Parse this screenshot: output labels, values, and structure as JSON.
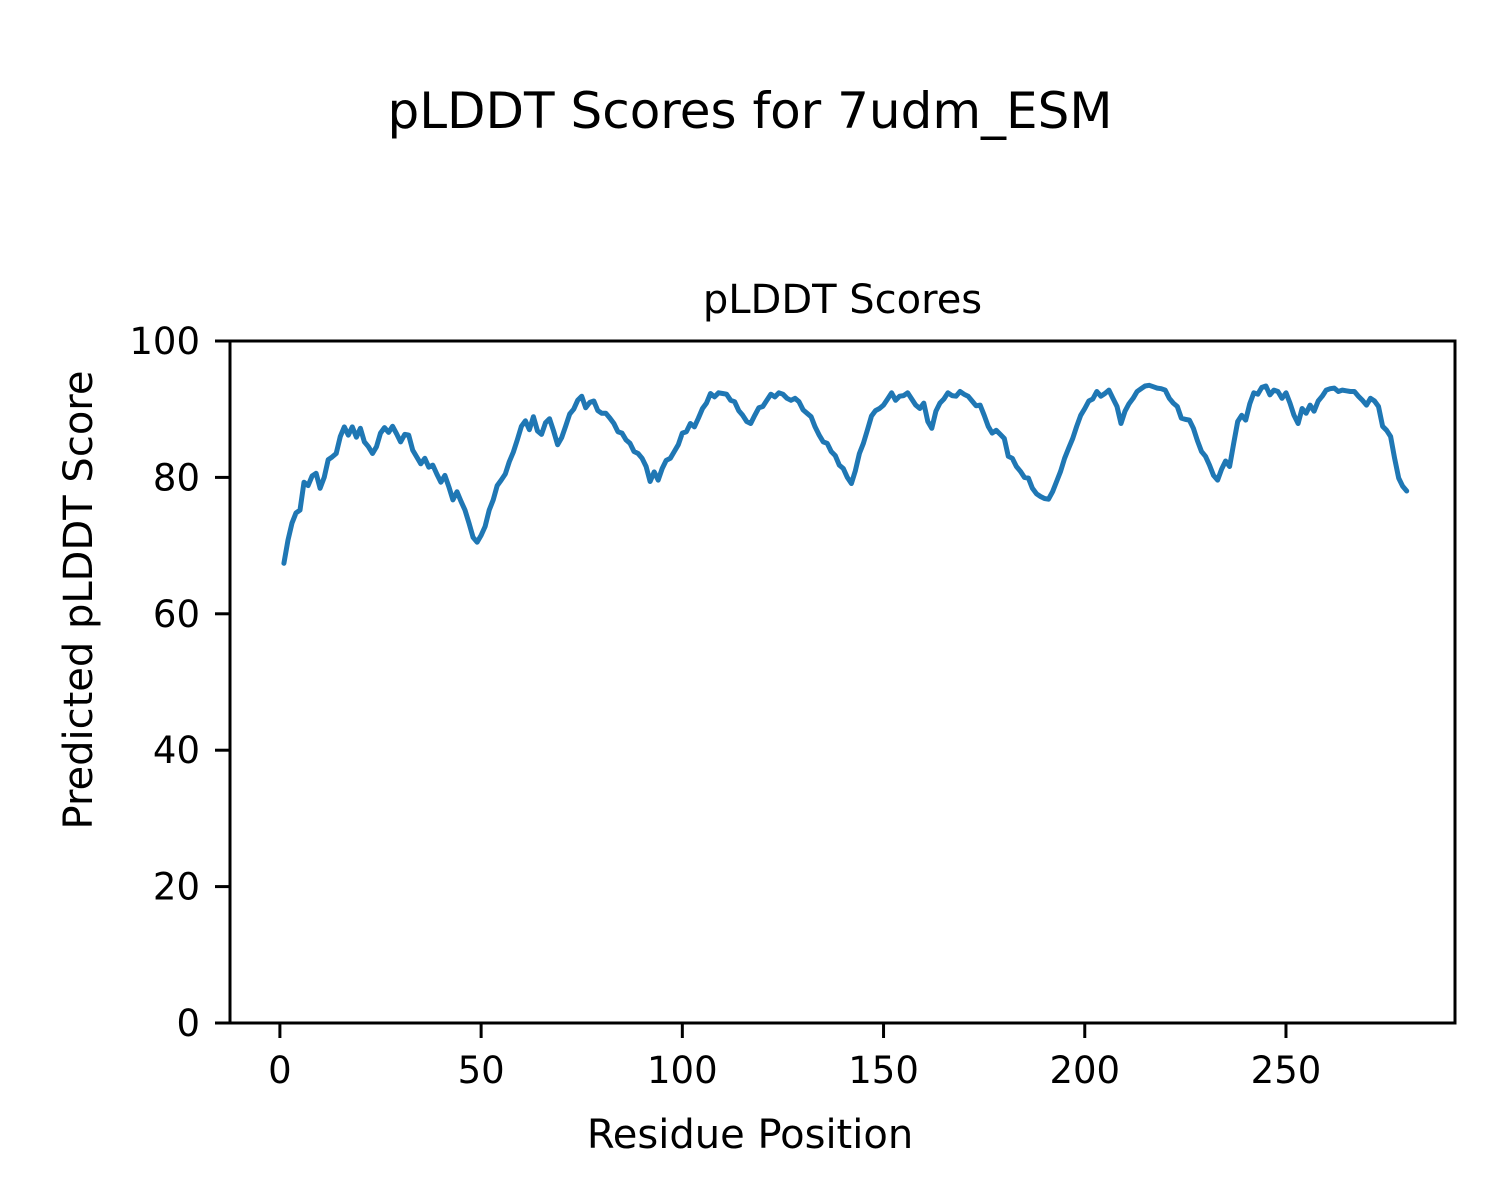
{
  "figure": {
    "title": "pLDDT Scores for 7udm_ESM"
  },
  "chart_data": {
    "type": "line",
    "title": "pLDDT Scores",
    "xlabel": "Residue Position",
    "ylabel": "Predicted pLDDT Score",
    "x_start": 1,
    "x_step": 1,
    "xlim": [
      -12.4,
      292
    ],
    "ylim": [
      0,
      100
    ],
    "x_ticks": [
      0,
      50,
      100,
      150,
      200,
      250
    ],
    "y_ticks": [
      0,
      20,
      40,
      60,
      80,
      100
    ],
    "grid": false,
    "legend_position": "none",
    "line_color": "#1f77b4",
    "axis_color": "#000000",
    "values": [
      67.4,
      70.8,
      73.3,
      74.8,
      75.2,
      79.3,
      78.8,
      80.2,
      80.6,
      78.4,
      80.0,
      82.6,
      83.0,
      83.5,
      86.0,
      87.4,
      86.2,
      87.4,
      85.9,
      87.2,
      85.2,
      84.5,
      83.5,
      84.5,
      86.5,
      87.3,
      86.6,
      87.5,
      86.4,
      85.2,
      86.3,
      86.2,
      84.0,
      83.0,
      82.0,
      82.8,
      81.5,
      81.8,
      80.5,
      79.3,
      80.3,
      78.6,
      76.7,
      77.9,
      76.5,
      75.2,
      73.3,
      71.2,
      70.5,
      71.5,
      72.8,
      75.2,
      76.7,
      78.8,
      79.6,
      80.5,
      82.3,
      83.7,
      85.5,
      87.5,
      88.3,
      87.0,
      88.9,
      86.8,
      86.3,
      88.0,
      88.6,
      86.8,
      84.8,
      85.8,
      87.5,
      89.3,
      90.0,
      91.3,
      91.9,
      90.2,
      91.0,
      91.2,
      89.8,
      89.4,
      89.4,
      88.7,
      87.9,
      86.7,
      86.5,
      85.5,
      85.0,
      83.8,
      83.5,
      82.8,
      81.6,
      79.4,
      80.8,
      79.6,
      81.3,
      82.5,
      82.8,
      83.8,
      84.8,
      86.5,
      86.7,
      87.9,
      87.4,
      88.7,
      90.1,
      90.9,
      92.3,
      91.8,
      92.4,
      92.3,
      92.2,
      91.3,
      91.1,
      89.8,
      89.1,
      88.2,
      87.9,
      89.1,
      90.2,
      90.4,
      91.3,
      92.2,
      91.8,
      92.4,
      92.2,
      91.6,
      91.3,
      91.6,
      91.1,
      89.9,
      89.4,
      88.9,
      87.4,
      86.2,
      85.2,
      85.0,
      83.8,
      83.2,
      81.8,
      81.3,
      80.0,
      79.1,
      81.0,
      83.5,
      85.0,
      87.0,
      89.0,
      89.8,
      90.1,
      90.6,
      91.5,
      92.4,
      91.3,
      91.9,
      92.0,
      92.4,
      91.5,
      90.6,
      90.1,
      90.9,
      88.2,
      87.2,
      89.7,
      90.9,
      91.5,
      92.4,
      92.0,
      91.9,
      92.6,
      92.2,
      91.9,
      91.2,
      90.5,
      90.6,
      89.1,
      87.5,
      86.5,
      86.9,
      86.3,
      85.7,
      83.1,
      82.8,
      81.6,
      80.9,
      80.0,
      79.9,
      78.4,
      77.6,
      77.2,
      76.9,
      76.8,
      77.9,
      79.4,
      80.9,
      82.8,
      84.3,
      85.7,
      87.5,
      89.1,
      90.1,
      91.2,
      91.5,
      92.6,
      91.9,
      92.3,
      92.8,
      91.6,
      90.4,
      87.9,
      89.7,
      90.8,
      91.6,
      92.6,
      93.0,
      93.4,
      93.5,
      93.3,
      93.1,
      93.0,
      92.8,
      91.6,
      90.9,
      90.4,
      88.7,
      88.5,
      88.4,
      87.2,
      85.4,
      83.8,
      83.1,
      81.8,
      80.3,
      79.6,
      81.2,
      82.4,
      81.6,
      85.0,
      88.2,
      89.1,
      88.4,
      90.8,
      92.4,
      92.2,
      93.2,
      93.4,
      92.1,
      92.8,
      92.6,
      91.6,
      92.4,
      90.9,
      89.1,
      87.9,
      90.1,
      89.4,
      90.6,
      89.7,
      91.2,
      91.9,
      92.8,
      93.0,
      93.1,
      92.6,
      92.8,
      92.7,
      92.6,
      92.6,
      91.9,
      91.3,
      90.6,
      91.6,
      91.2,
      90.4,
      87.5,
      86.9,
      86.0,
      82.8,
      79.9,
      78.7,
      78.0
    ]
  }
}
